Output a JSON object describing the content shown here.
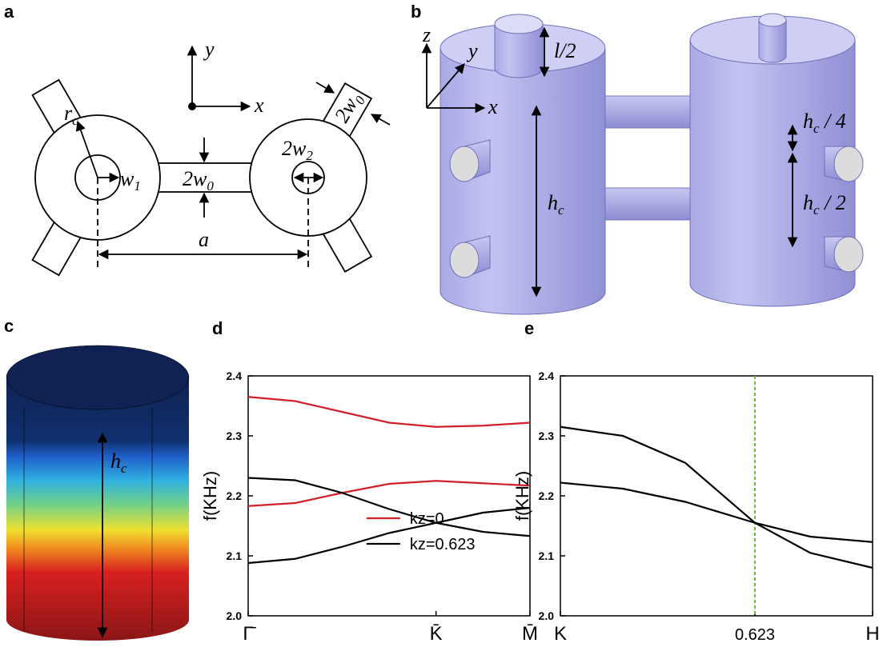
{
  "panels": {
    "a": {
      "label": "a",
      "y": "y",
      "x": "x",
      "rc": {
        "base": "r",
        "sub": "c"
      },
      "w1": {
        "base": "w",
        "sub": "1"
      },
      "w0_mid": {
        "base": "2w",
        "sub": "0"
      },
      "w2": {
        "base": "2w",
        "sub": "2"
      },
      "w0_arm": {
        "base": "2w",
        "sub": "0"
      },
      "a": "a"
    },
    "b": {
      "label": "b",
      "z": "z",
      "y": "y",
      "x": "x",
      "l2": "l/2",
      "hc": {
        "base": "h",
        "sub": "c"
      },
      "hc4": {
        "base": "h",
        "sub": "c",
        "rest": " / 4"
      },
      "hc2": {
        "base": "h",
        "sub": "c",
        "rest": " / 2"
      }
    },
    "c": {
      "label": "c",
      "hc": {
        "base": "h",
        "sub": "c"
      }
    }
  },
  "chart_data": [
    {
      "type": "line",
      "panel_label": "d",
      "ylabel": "f(KHz)",
      "x": [
        0,
        0.25,
        0.5,
        0.75,
        1,
        1.25,
        1.5
      ],
      "xlim": [
        0,
        1.5
      ],
      "xticks": [
        {
          "value": 0,
          "label": "Γ̄"
        },
        {
          "value": 1,
          "label": "K̄"
        },
        {
          "value": 1.5,
          "label": "M̄"
        }
      ],
      "ylim": [
        2.0,
        2.4
      ],
      "yticks": [
        {
          "value": 2,
          "label": "2.0"
        },
        2.1,
        2.2,
        2.3,
        2.4
      ],
      "legend": "bottom",
      "series": [
        {
          "name": "kz=0",
          "color": "#d0202a",
          "curves": [
            [
              2.365,
              2.358,
              2.34,
              2.322,
              2.315,
              2.317,
              2.322
            ],
            [
              2.183,
              2.188,
              2.205,
              2.22,
              2.225,
              2.221,
              2.217
            ]
          ]
        },
        {
          "name": "kz=0.623",
          "color": "#000000",
          "curves": [
            [
              2.23,
              2.226,
              2.205,
              2.178,
              2.155,
              2.14,
              2.133
            ],
            [
              2.088,
              2.095,
              2.115,
              2.138,
              2.155,
              2.172,
              2.18
            ]
          ]
        }
      ]
    },
    {
      "type": "line",
      "panel_label": "e",
      "ylabel": "f(KHz)",
      "x": [
        0,
        0.2,
        0.4,
        0.623,
        0.8,
        1
      ],
      "xlim": [
        0,
        1
      ],
      "xticks": [
        {
          "value": 0,
          "label": "K"
        },
        0.623,
        {
          "value": 1,
          "label": "H"
        }
      ],
      "ylim": [
        2.0,
        2.4
      ],
      "yticks": [
        {
          "value": 2,
          "label": "2.0"
        },
        2.1,
        2.2,
        2.3,
        2.4
      ],
      "vline": {
        "x": 0.623,
        "color": "#6ab83a"
      },
      "series": [
        {
          "color": "#000000",
          "curves": [
            [
              2.315,
              2.3,
              2.255,
              2.155,
              2.105,
              2.08
            ],
            [
              2.222,
              2.212,
              2.19,
              2.155,
              2.132,
              2.123
            ]
          ]
        }
      ]
    }
  ]
}
